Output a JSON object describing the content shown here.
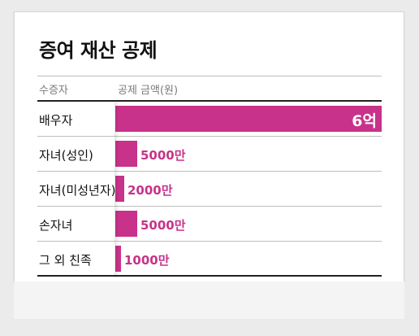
{
  "title": "증여 재산 공제",
  "colors": {
    "bar": "#c8328a",
    "label": "#c8328a"
  },
  "chart_data": {
    "type": "bar",
    "orientation": "horizontal",
    "title": "증여 재산 공제",
    "category_header": "수증자",
    "value_header": "공제 금액(원)",
    "unit": "원",
    "categories": [
      "배우자",
      "자녀(성인)",
      "자녀(미성년자)",
      "손자녀",
      "그 외 친족"
    ],
    "values": [
      600000000,
      50000000,
      20000000,
      50000000,
      10000000
    ],
    "value_labels": [
      "6억",
      "5000만",
      "2000만",
      "5000만",
      "1000만"
    ],
    "xlim": [
      0,
      600000000
    ],
    "grid": false,
    "legend": "none"
  }
}
